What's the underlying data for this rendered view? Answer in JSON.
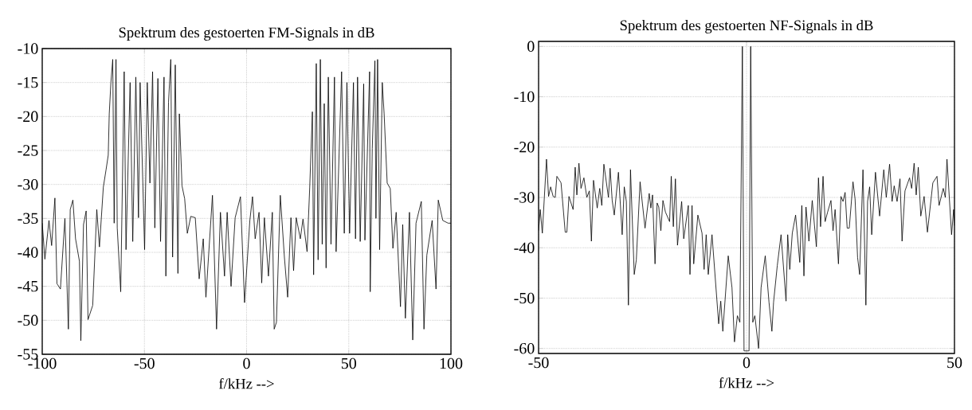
{
  "chart_data": [
    {
      "type": "line",
      "title": "Spektrum des gestoerten FM-Signals in dB",
      "xlabel": "f/kHz -->",
      "color": "#000000",
      "grid": true,
      "marker": "none",
      "line_style": "solid",
      "xlim": [
        -100,
        100
      ],
      "ylim": [
        -55,
        -10
      ],
      "xticks": [
        -100,
        -50,
        0,
        50,
        100
      ],
      "yticks": [
        -55,
        -50,
        -45,
        -40,
        -35,
        -30,
        -25,
        -20,
        -15,
        -10
      ],
      "x": [
        -100.0,
        -98.7,
        -96.7,
        -95.4,
        -93.8,
        -92.8,
        -91.1,
        -88.9,
        -87.2,
        -86.3,
        -85.0,
        -83.7,
        -81.8,
        -81.1,
        -79.8,
        -78.5,
        -77.6,
        -75.3,
        -73.3,
        -72.0,
        -70.1,
        -68.8,
        -67.7,
        -67.2,
        -66.4,
        -65.5,
        -64.8,
        -63.9,
        -63.3,
        -61.6,
        -59.9,
        -59.0,
        -57.0,
        -55.7,
        -54.2,
        -52.9,
        -52.1,
        -49.9,
        -48.6,
        -47.3,
        -46.0,
        -44.9,
        -43.4,
        -42.1,
        -40.4,
        -39.5,
        -38.2,
        -37.1,
        -36.2,
        -34.9,
        -33.6,
        -32.9,
        -31.6,
        -30.3,
        -29.0,
        -27.3,
        -25.1,
        -23.2,
        -21.2,
        -19.9,
        -16.7,
        -14.7,
        -12.8,
        -10.8,
        -9.5,
        -7.6,
        -5.6,
        -3.0,
        -1.0,
        1.6,
        2.9,
        4.2,
        6.1,
        7.4,
        8.7,
        10.7,
        12.6,
        13.5,
        14.6,
        16.5,
        18.5,
        20.1,
        21.7,
        23.0,
        24.3,
        26.3,
        27.6,
        29.6,
        30.9,
        32.2,
        32.8,
        34.1,
        35.0,
        36.1,
        37.0,
        38.0,
        38.9,
        40.0,
        41.3,
        43.0,
        43.8,
        46.5,
        47.8,
        49.1,
        50.4,
        52.3,
        53.3,
        54.3,
        55.6,
        57.3,
        57.9,
        60.2,
        60.5,
        61.5,
        62.8,
        63.3,
        64.1,
        65.1,
        66.4,
        67.3,
        68.8,
        70.3,
        71.6,
        73.2,
        74.5,
        75.3,
        76.4,
        77.7,
        79.7,
        81.3,
        82.9,
        85.5,
        86.8,
        88.2,
        90.8,
        92.7,
        93.8,
        96.0,
        98.6,
        100.0
      ],
      "values": [
        -35.7,
        -41.0,
        -35.3,
        -39.0,
        -32.0,
        -44.6,
        -45.4,
        -35.0,
        -51.3,
        -33.7,
        -32.3,
        -38.0,
        -41.3,
        -53.0,
        -35.9,
        -33.9,
        -49.9,
        -47.8,
        -33.7,
        -39.2,
        -30.4,
        -27.9,
        -25.7,
        -19.6,
        -15.0,
        -11.6,
        -35.7,
        -11.6,
        -36.4,
        -45.8,
        -13.4,
        -39.6,
        -15.0,
        -38.4,
        -14.2,
        -34.9,
        -15.0,
        -39.6,
        -15.0,
        -29.8,
        -13.4,
        -36.4,
        -14.4,
        -38.4,
        -14.2,
        -43.5,
        -17.9,
        -11.6,
        -40.7,
        -12.4,
        -43.1,
        -19.6,
        -30.2,
        -32.1,
        -37.2,
        -34.7,
        -34.9,
        -43.9,
        -38.0,
        -46.6,
        -31.6,
        -51.3,
        -34.1,
        -43.5,
        -34.1,
        -45.0,
        -34.9,
        -31.8,
        -47.4,
        -35.3,
        -31.8,
        -38.0,
        -34.1,
        -44.5,
        -34.9,
        -43.5,
        -34.1,
        -51.3,
        -50.3,
        -31.6,
        -40.7,
        -46.6,
        -34.9,
        -42.7,
        -34.9,
        -38.0,
        -35.1,
        -39.9,
        -30.4,
        -19.3,
        -43.3,
        -12.2,
        -41.1,
        -11.6,
        -38.8,
        -18.1,
        -42.3,
        -14.2,
        -38.8,
        -14.2,
        -39.9,
        -13.4,
        -37.2,
        -15.0,
        -37.2,
        -15.0,
        -38.0,
        -14.2,
        -38.4,
        -15.2,
        -38.2,
        -13.4,
        -45.8,
        -24.7,
        -11.8,
        -35.0,
        -11.6,
        -39.6,
        -15.0,
        -19.6,
        -29.8,
        -30.6,
        -39.4,
        -34.1,
        -42.7,
        -48.0,
        -35.9,
        -49.7,
        -34.1,
        -52.9,
        -35.7,
        -32.5,
        -51.3,
        -40.4,
        -35.3,
        -45.4,
        -32.3,
        -35.3,
        -35.7,
        -35.7
      ]
    },
    {
      "type": "line",
      "title": "Spektrum des gestoerten NF-Signals in dB",
      "xlabel": "f/kHz -->",
      "color": "#000000",
      "grid": true,
      "marker": "none",
      "line_style": "solid",
      "xlim": [
        -50,
        50
      ],
      "ylim": [
        -61,
        1
      ],
      "xticks": [
        -50,
        0,
        50
      ],
      "yticks": [
        -60,
        -50,
        -40,
        -30,
        -20,
        -10,
        0
      ],
      "x": [
        -50.0,
        -49.6,
        -49.1,
        -48.1,
        -47.6,
        -47.1,
        -46.5,
        -46.0,
        -45.6,
        -44.6,
        -43.6,
        -43.2,
        -42.7,
        -41.7,
        -41.2,
        -40.8,
        -40.3,
        -39.8,
        -39.1,
        -38.4,
        -37.8,
        -37.3,
        -36.8,
        -35.9,
        -35.3,
        -34.8,
        -34.3,
        -33.2,
        -32.8,
        -32.3,
        -31.8,
        -30.8,
        -29.9,
        -29.4,
        -28.9,
        -28.4,
        -27.9,
        -27.0,
        -26.5,
        -25.6,
        -24.4,
        -23.4,
        -23.0,
        -22.6,
        -22.0,
        -21.5,
        -21.1,
        -20.6,
        -20.1,
        -19.5,
        -18.5,
        -18.1,
        -17.6,
        -17.1,
        -16.6,
        -15.6,
        -15.1,
        -14.0,
        -13.6,
        -13.1,
        -12.7,
        -11.7,
        -10.7,
        -10.2,
        -9.7,
        -9.2,
        -8.3,
        -6.7,
        -6.2,
        -5.7,
        -4.4,
        -3.5,
        -2.9,
        -2.2,
        -1.6,
        -1.0,
        -0.6,
        0.6,
        1.0,
        1.5,
        2.0,
        2.9,
        3.5,
        4.5,
        5.4,
        6.1,
        6.5,
        7.4,
        8.3,
        9.5,
        9.9,
        10.4,
        11.0,
        11.8,
        12.8,
        13.3,
        13.8,
        14.3,
        15.0,
        15.8,
        16.8,
        17.3,
        17.8,
        18.4,
        18.9,
        19.5,
        20.3,
        20.8,
        21.3,
        22.1,
        22.7,
        23.2,
        23.7,
        24.2,
        24.7,
        25.6,
        26.1,
        26.7,
        27.2,
        28.0,
        28.7,
        29.1,
        29.6,
        30.1,
        31.0,
        32.0,
        33.0,
        33.6,
        34.4,
        35.0,
        35.5,
        36.2,
        36.9,
        37.4,
        38.1,
        39.2,
        39.7,
        40.3,
        40.8,
        41.3,
        41.9,
        42.7,
        43.5,
        44.8,
        45.8,
        46.3,
        47.3,
        47.8,
        48.2,
        49.3,
        49.8,
        50.0
      ],
      "values": [
        -36.6,
        -32.4,
        -37.1,
        -22.4,
        -29.8,
        -27.9,
        -29.8,
        -30.0,
        -25.8,
        -27.1,
        -36.9,
        -36.9,
        -29.8,
        -32.4,
        -24.0,
        -29.5,
        -23.2,
        -28.2,
        -26.1,
        -30.0,
        -28.7,
        -38.7,
        -26.6,
        -32.1,
        -28.2,
        -31.6,
        -23.4,
        -30.0,
        -24.2,
        -30.6,
        -33.5,
        -25.0,
        -37.4,
        -27.9,
        -30.8,
        -51.4,
        -24.5,
        -45.3,
        -42.4,
        -26.9,
        -36.1,
        -29.2,
        -32.1,
        -29.5,
        -43.2,
        -31.1,
        -31.9,
        -36.6,
        -30.6,
        -32.9,
        -34.8,
        -25.8,
        -35.8,
        -26.3,
        -39.5,
        -30.8,
        -38.2,
        -31.6,
        -45.3,
        -31.6,
        -43.2,
        -33.5,
        -37.1,
        -44.3,
        -37.4,
        -45.3,
        -37.4,
        -55.1,
        -50.6,
        -56.6,
        -41.6,
        -47.9,
        -58.7,
        -53.5,
        -54.8,
        0,
        -60.5,
        -60.5,
        0,
        -54.8,
        -53.5,
        -60.0,
        -47.9,
        -41.6,
        -50.8,
        -56.6,
        -50.8,
        -43.5,
        -37.4,
        -50.6,
        -37.4,
        -44.3,
        -37.1,
        -33.5,
        -42.9,
        -31.6,
        -45.6,
        -31.9,
        -38.7,
        -30.6,
        -39.8,
        -26.1,
        -35.8,
        -25.8,
        -34.8,
        -32.9,
        -30.6,
        -36.6,
        -32.4,
        -43.2,
        -29.8,
        -30.8,
        -29.0,
        -36.1,
        -36.1,
        -26.9,
        -30.3,
        -41.9,
        -45.3,
        -24.5,
        -51.4,
        -30.8,
        -27.9,
        -37.4,
        -25.0,
        -33.7,
        -24.5,
        -30.0,
        -23.4,
        -30.8,
        -27.7,
        -30.8,
        -26.3,
        -38.7,
        -28.7,
        -26.1,
        -28.2,
        -23.2,
        -29.5,
        -24.0,
        -33.7,
        -29.8,
        -36.9,
        -27.1,
        -25.8,
        -31.6,
        -28.2,
        -30.0,
        -22.4,
        -37.4,
        -32.4,
        -35.6
      ]
    }
  ]
}
